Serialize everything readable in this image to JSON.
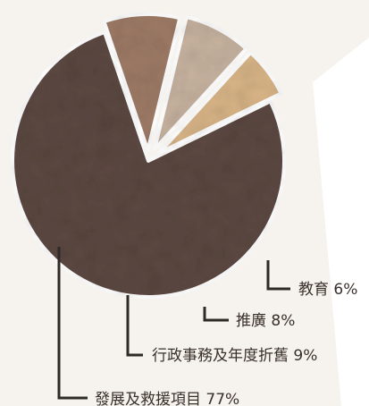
{
  "chart_data": {
    "type": "pie",
    "exploded": true,
    "start_angle_deg": 64,
    "direction": "clockwise",
    "slices": [
      {
        "label": "發展及救援項目 77%",
        "value": 77,
        "color": "#5c4842"
      },
      {
        "label": "行政事務及年度折舊 9%",
        "value": 9,
        "color": "#9d7a66"
      },
      {
        "label": "推廣 8%",
        "value": 8,
        "color": "#c7b29f"
      },
      {
        "label": "教育 6%",
        "value": 6,
        "color": "#d8b487"
      }
    ],
    "title": "",
    "xlabel": "",
    "ylabel": "",
    "legend": "callouts",
    "grid": false
  }
}
